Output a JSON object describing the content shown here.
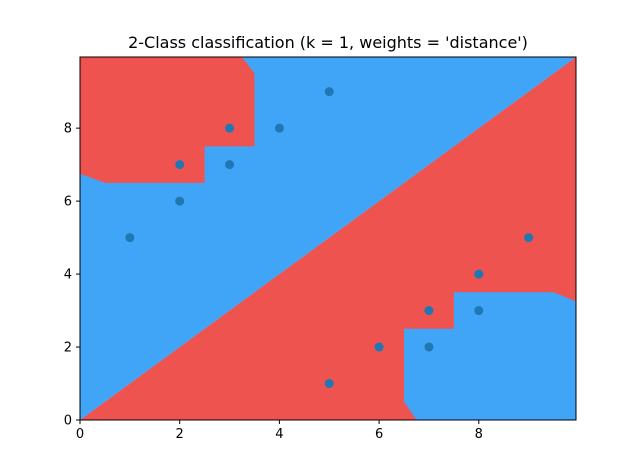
{
  "chart_data": {
    "type": "scatter",
    "title": "2-Class classification (k = 1, weights = 'distance')",
    "xlabel": "",
    "ylabel": "",
    "xlim": [
      0,
      9.95
    ],
    "ylim": [
      0,
      9.95
    ],
    "grid": false,
    "xticks": [
      "0",
      "2",
      "4",
      "6",
      "8"
    ],
    "yticks": [
      "0",
      "2",
      "4",
      "6",
      "8"
    ],
    "points": [
      {
        "x": 1,
        "y": 5
      },
      {
        "x": 2,
        "y": 6
      },
      {
        "x": 2,
        "y": 7
      },
      {
        "x": 3,
        "y": 7
      },
      {
        "x": 3,
        "y": 8
      },
      {
        "x": 4,
        "y": 8
      },
      {
        "x": 5,
        "y": 9
      },
      {
        "x": 5,
        "y": 1
      },
      {
        "x": 6,
        "y": 2
      },
      {
        "x": 7,
        "y": 2
      },
      {
        "x": 7,
        "y": 3
      },
      {
        "x": 8,
        "y": 3
      },
      {
        "x": 8,
        "y": 4
      },
      {
        "x": 9,
        "y": 5
      }
    ],
    "regions": [
      {
        "class": "blue",
        "color": "#41a5f7",
        "polygon": [
          [
            0,
            0
          ],
          [
            9.95,
            9.95
          ],
          [
            9.95,
            0
          ]
        ]
      },
      {
        "class": "red",
        "color": "#ef5350",
        "polygon": [
          [
            0,
            0
          ],
          [
            9.95,
            9.95
          ],
          [
            9.95,
            3.25
          ],
          [
            9.5,
            3.5
          ],
          [
            7.5,
            3.5
          ],
          [
            7.5,
            2.5
          ],
          [
            6.5,
            2.5
          ],
          [
            6.5,
            0.5
          ],
          [
            6.75,
            0
          ]
        ]
      },
      {
        "class": "blue",
        "color": "#41a5f7",
        "polygon": [
          [
            0,
            0
          ],
          [
            0,
            9.95
          ],
          [
            9.95,
            9.95
          ]
        ]
      },
      {
        "class": "red",
        "color": "#ef5350",
        "polygon": [
          [
            0,
            6.75
          ],
          [
            0.5,
            6.5
          ],
          [
            2.5,
            6.5
          ],
          [
            2.5,
            7.5
          ],
          [
            3.5,
            7.5
          ],
          [
            3.5,
            9.5
          ],
          [
            3.25,
            9.95
          ],
          [
            0,
            9.95
          ]
        ]
      }
    ],
    "colors": {
      "class_a": "#ef5350",
      "class_b": "#41a5f7",
      "points": "#1f77b4"
    }
  }
}
